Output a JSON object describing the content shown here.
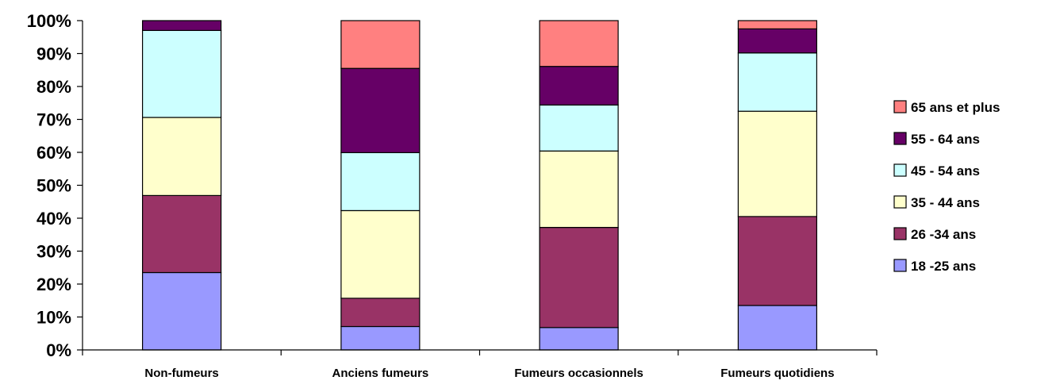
{
  "chart_data": {
    "type": "bar",
    "stacked": true,
    "percent": true,
    "categories": [
      "Non-fumeurs",
      "Anciens fumeurs",
      "Fumeurs occasionnels",
      "Fumeurs quotidiens"
    ],
    "series": [
      {
        "name": "18 -25 ans",
        "color": "#9999ff",
        "values": [
          23.5,
          7.1,
          6.8,
          13.5
        ]
      },
      {
        "name": "26 -34 ans",
        "color": "#993366",
        "values": [
          23.4,
          8.6,
          30.4,
          27.0
        ]
      },
      {
        "name": "35 - 44 ans",
        "color": "#ffffcc",
        "values": [
          23.7,
          26.6,
          23.2,
          32.0
        ]
      },
      {
        "name": "45 - 54 ans",
        "color": "#ccffff",
        "values": [
          26.4,
          17.6,
          14.0,
          17.7
        ]
      },
      {
        "name": "55 - 64 ans",
        "color": "#660066",
        "values": [
          3.0,
          25.6,
          11.7,
          7.3
        ]
      },
      {
        "name": "65 ans et plus",
        "color": "#ff8080",
        "values": [
          0.0,
          14.5,
          13.9,
          2.5
        ]
      }
    ],
    "ylim": [
      0,
      100
    ],
    "yticks": [
      "0%",
      "10%",
      "20%",
      "30%",
      "40%",
      "50%",
      "60%",
      "70%",
      "80%",
      "90%",
      "100%"
    ],
    "legend_position": "right",
    "legend_order": "reverse",
    "grid": false
  }
}
